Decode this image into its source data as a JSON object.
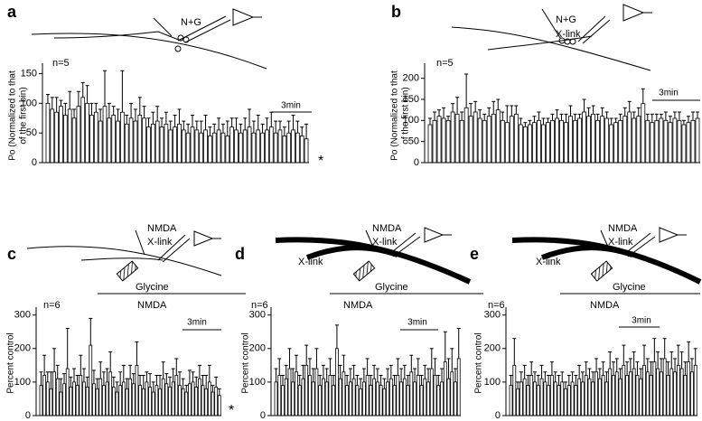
{
  "chart_data": [
    {
      "type": "bar",
      "panel": "a",
      "ylabel": [
        "Po (Normalized to that",
        "of the first bin)"
      ],
      "n_label": "n=5",
      "scale_label": "3min",
      "significance": "*",
      "annotations": [
        "N+G"
      ],
      "ylim": [
        0,
        160
      ],
      "yticks": [
        0,
        50,
        100,
        150
      ],
      "values": [
        100,
        90,
        85,
        95,
        80,
        90,
        75,
        95,
        110,
        100,
        80,
        85,
        70,
        95,
        75,
        80,
        70,
        85,
        65,
        75,
        70,
        80,
        75,
        60,
        65,
        70,
        60,
        65,
        55,
        60,
        65,
        55,
        50,
        60,
        55,
        50,
        55,
        45,
        50,
        55,
        50,
        45,
        60,
        55,
        50,
        55,
        60,
        50,
        55,
        50,
        55,
        60,
        50,
        55,
        45,
        50,
        55,
        50,
        45,
        40
      ],
      "errors": [
        15,
        20,
        25,
        10,
        20,
        30,
        15,
        25,
        25,
        30,
        20,
        15,
        20,
        60,
        25,
        15,
        20,
        70,
        15,
        25,
        20,
        30,
        20,
        15,
        20,
        25,
        15,
        20,
        15,
        20,
        25,
        15,
        15,
        20,
        15,
        20,
        25,
        15,
        15,
        20,
        15,
        25,
        15,
        20,
        15,
        20,
        30,
        20,
        25,
        15,
        20,
        25,
        20,
        15,
        15,
        20,
        25,
        20,
        15,
        25
      ]
    },
    {
      "type": "bar",
      "panel": "b",
      "ylabel": [
        "Po (Normalized to that",
        "of the first bin)"
      ],
      "n_label": "n=5",
      "scale_label": "3min",
      "annotations": [
        "N+G",
        "X-link"
      ],
      "ylim": [
        0,
        225
      ],
      "yticks": [
        0,
        50,
        100,
        150,
        200
      ],
      "values": [
        90,
        100,
        110,
        105,
        100,
        120,
        115,
        100,
        130,
        110,
        120,
        105,
        100,
        110,
        115,
        125,
        100,
        95,
        110,
        115,
        90,
        85,
        90,
        95,
        100,
        90,
        95,
        100,
        105,
        100,
        95,
        110,
        100,
        105,
        120,
        110,
        115,
        100,
        110,
        105,
        90,
        95,
        100,
        110,
        120,
        105,
        110,
        140,
        100,
        95,
        100,
        105,
        100,
        95,
        105,
        100,
        90,
        95,
        100,
        105
      ],
      "errors": [
        15,
        20,
        15,
        25,
        10,
        20,
        40,
        20,
        80,
        30,
        25,
        20,
        15,
        20,
        30,
        25,
        20,
        40,
        25,
        20,
        15,
        10,
        10,
        15,
        20,
        15,
        10,
        15,
        20,
        15,
        20,
        25,
        15,
        10,
        30,
        20,
        20,
        15,
        20,
        15,
        15,
        10,
        15,
        20,
        25,
        15,
        20,
        35,
        15,
        20,
        15,
        10,
        20,
        15,
        15,
        20,
        10,
        15,
        20,
        15
      ]
    },
    {
      "type": "bar",
      "panel": "c",
      "ylabel": [
        "Percent control"
      ],
      "n_label": "n=6",
      "scale_label": "3min",
      "nmda_label": "NMDA",
      "significance": "*",
      "annotations": [
        "NMDA",
        "X-link",
        "Glycine"
      ],
      "ylim": [
        0,
        310
      ],
      "yticks": [
        0,
        100,
        200,
        300
      ],
      "values": [
        90,
        120,
        100,
        80,
        130,
        110,
        70,
        95,
        140,
        85,
        100,
        90,
        120,
        100,
        85,
        210,
        95,
        80,
        110,
        90,
        100,
        130,
        85,
        70,
        90,
        100,
        80,
        110,
        95,
        150,
        90,
        80,
        100,
        85,
        70,
        90,
        80,
        110,
        95,
        85,
        100,
        120,
        90,
        80,
        70,
        95,
        100,
        85,
        110,
        90,
        80,
        100,
        70,
        85,
        60
      ],
      "errors": [
        40,
        60,
        30,
        50,
        70,
        40,
        40,
        30,
        120,
        30,
        40,
        30,
        60,
        40,
        30,
        80,
        40,
        30,
        50,
        40,
        40,
        60,
        30,
        30,
        40,
        50,
        30,
        40,
        30,
        70,
        30,
        40,
        30,
        40,
        30,
        30,
        40,
        50,
        30,
        30,
        40,
        50,
        40,
        30,
        20,
        40,
        30,
        30,
        40,
        30,
        40,
        50,
        20,
        30,
        20
      ]
    },
    {
      "type": "bar",
      "panel": "d",
      "ylabel": [
        "Percent control"
      ],
      "n_label": "n=6",
      "scale_label": "3min",
      "nmda_label": "NMDA",
      "annotations": [
        "NMDA",
        "X-link",
        "X-link",
        "Glycine"
      ],
      "ylim": [
        0,
        310
      ],
      "yticks": [
        0,
        100,
        200,
        300
      ],
      "values": [
        100,
        120,
        90,
        110,
        140,
        100,
        130,
        90,
        110,
        150,
        120,
        100,
        140,
        90,
        110,
        100,
        120,
        90,
        200,
        110,
        130,
        90,
        100,
        110,
        90,
        80,
        100,
        120,
        90,
        110,
        100,
        90,
        80,
        100,
        110,
        90,
        120,
        100,
        110,
        90,
        130,
        100,
        120,
        90,
        110,
        100,
        140,
        120,
        90,
        100,
        160,
        110,
        130,
        100,
        170
      ],
      "errors": [
        40,
        50,
        30,
        40,
        60,
        40,
        50,
        30,
        40,
        60,
        50,
        40,
        60,
        30,
        40,
        40,
        50,
        30,
        70,
        40,
        50,
        30,
        40,
        40,
        30,
        30,
        40,
        50,
        30,
        40,
        40,
        30,
        30,
        40,
        40,
        30,
        50,
        40,
        40,
        30,
        50,
        40,
        50,
        30,
        40,
        40,
        60,
        50,
        30,
        40,
        90,
        60,
        70,
        40,
        90
      ]
    },
    {
      "type": "bar",
      "panel": "e",
      "ylabel": [
        "Percent control"
      ],
      "n_label": "n=6",
      "scale_label": "3min",
      "nmda_label": "NMDA",
      "annotations": [
        "NMDA",
        "X-link",
        "X-link",
        "Glycine"
      ],
      "ylim": [
        0,
        310
      ],
      "yticks": [
        0,
        100,
        200,
        300
      ],
      "values": [
        90,
        150,
        80,
        100,
        110,
        90,
        120,
        100,
        90,
        110,
        100,
        90,
        120,
        100,
        90,
        100,
        80,
        90,
        100,
        90,
        110,
        100,
        120,
        110,
        100,
        130,
        110,
        120,
        100,
        140,
        120,
        130,
        110,
        150,
        120,
        130,
        140,
        120,
        110,
        150,
        130,
        120,
        160,
        140,
        130,
        170,
        120,
        140,
        130,
        150,
        140,
        120,
        160,
        130,
        150
      ],
      "errors": [
        30,
        80,
        20,
        30,
        40,
        30,
        40,
        30,
        30,
        40,
        30,
        30,
        40,
        30,
        30,
        30,
        20,
        30,
        30,
        30,
        40,
        30,
        40,
        30,
        30,
        40,
        30,
        40,
        30,
        50,
        40,
        40,
        30,
        60,
        40,
        40,
        50,
        40,
        30,
        60,
        40,
        40,
        70,
        50,
        40,
        60,
        40,
        50,
        40,
        60,
        50,
        40,
        60,
        40,
        50
      ]
    }
  ]
}
